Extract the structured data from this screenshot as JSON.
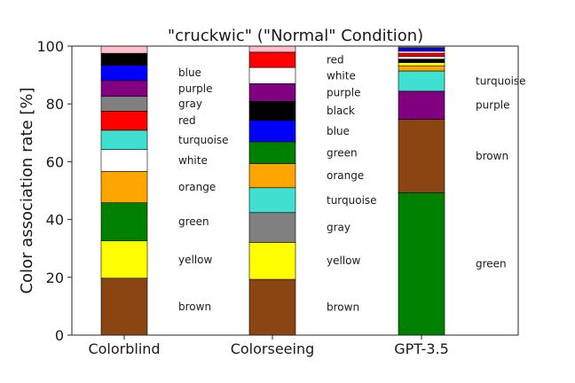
{
  "chart_data": {
    "type": "bar",
    "stacked": true,
    "title": "\"cruckwic\" (\"Normal\" Condition)",
    "xlabel": "",
    "ylabel": "Color association rate [%]",
    "ylim": [
      0,
      100
    ],
    "yticks": [
      0,
      20,
      40,
      60,
      80,
      100
    ],
    "grid": false,
    "categories": [
      "Colorblind",
      "Colorseeing",
      "GPT-3.5"
    ],
    "bars": [
      {
        "category": "Colorblind",
        "segments": [
          {
            "label": "brown",
            "color": "#8B4513",
            "value": 19.7
          },
          {
            "label": "yellow",
            "color": "#FFFF00",
            "value": 12.9
          },
          {
            "label": "green",
            "color": "#008000",
            "value": 13.2
          },
          {
            "label": "orange",
            "color": "#FFA500",
            "value": 10.8
          },
          {
            "label": "white",
            "color": "#FFFFFF",
            "value": 7.6
          },
          {
            "label": "turquoise",
            "color": "#40E0D0",
            "value": 6.7
          },
          {
            "label": "red",
            "color": "#FF0000",
            "value": 6.6
          },
          {
            "label": "gray",
            "color": "#808080",
            "value": 5.1
          },
          {
            "label": "purple",
            "color": "#800080",
            "value": 5.5
          },
          {
            "label": "blue",
            "color": "#0000FF",
            "value": 5.3
          },
          {
            "label": "",
            "color": "#000000",
            "value": 4.1
          },
          {
            "label": "",
            "color": "#FFC0CB",
            "value": 2.5
          }
        ]
      },
      {
        "category": "Colorseeing",
        "segments": [
          {
            "label": "brown",
            "color": "#8B4513",
            "value": 19.3
          },
          {
            "label": "yellow",
            "color": "#FFFF00",
            "value": 12.8
          },
          {
            "label": "gray",
            "color": "#808080",
            "value": 10.3
          },
          {
            "label": "turquoise",
            "color": "#40E0D0",
            "value": 8.6
          },
          {
            "label": "orange",
            "color": "#FFA500",
            "value": 8.3
          },
          {
            "label": "green",
            "color": "#008000",
            "value": 7.6
          },
          {
            "label": "blue",
            "color": "#0000FF",
            "value": 7.4
          },
          {
            "label": "black",
            "color": "#000000",
            "value": 6.6
          },
          {
            "label": "purple",
            "color": "#800080",
            "value": 6.1
          },
          {
            "label": "white",
            "color": "#FFFFFF",
            "value": 5.6
          },
          {
            "label": "red",
            "color": "#FF0000",
            "value": 5.3
          },
          {
            "label": "",
            "color": "#FFC0CB",
            "value": 2.1
          }
        ]
      },
      {
        "category": "GPT-3.5",
        "segments": [
          {
            "label": "green",
            "color": "#008000",
            "value": 49.3
          },
          {
            "label": "brown",
            "color": "#8B4513",
            "value": 25.4
          },
          {
            "label": "purple",
            "color": "#800080",
            "value": 9.7
          },
          {
            "label": "turquoise",
            "color": "#40E0D0",
            "value": 7.0
          },
          {
            "label": "",
            "color": "#FFA500",
            "value": 1.8
          },
          {
            "label": "",
            "color": "#FFFF00",
            "value": 1.1
          },
          {
            "label": "",
            "color": "#000000",
            "value": 1.2
          },
          {
            "label": "",
            "color": "#FFFFFF",
            "value": 0.9
          },
          {
            "label": "",
            "color": "#FF0000",
            "value": 1.1
          },
          {
            "label": "",
            "color": "#FFC0CB",
            "value": 0.8
          },
          {
            "label": "",
            "color": "#0000FF",
            "value": 1.1
          },
          {
            "label": "",
            "color": "#808080",
            "value": 0.6
          }
        ]
      }
    ]
  }
}
